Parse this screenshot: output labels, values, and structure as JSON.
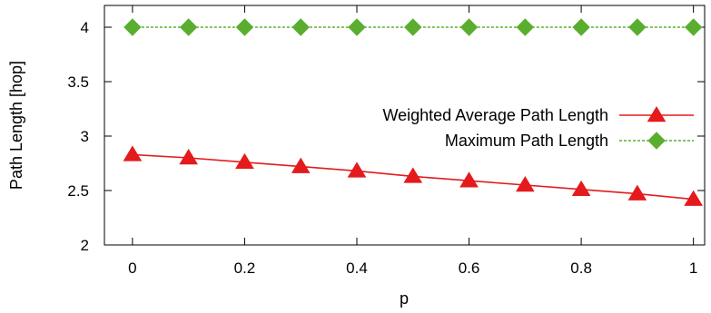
{
  "chart_data": {
    "type": "line",
    "title": "",
    "xlabel": "p",
    "ylabel": "Path Length [hop]",
    "xlim": [
      -0.05,
      1.02
    ],
    "ylim": [
      2,
      4.2
    ],
    "xticks": [
      0,
      0.2,
      0.4,
      0.6,
      0.8,
      1
    ],
    "xtick_labels": [
      "0",
      "0.2",
      "0.4",
      "0.6",
      "0.8",
      "1"
    ],
    "yticks": [
      2,
      2.5,
      3,
      3.5,
      4
    ],
    "ytick_labels": [
      "2",
      "2.5",
      "3",
      "3.5",
      "4"
    ],
    "grid": false,
    "legend_position": "right",
    "x": [
      0,
      0.1,
      0.2,
      0.3,
      0.4,
      0.5,
      0.6,
      0.7,
      0.8,
      0.9,
      1.0
    ],
    "series": [
      {
        "name": "Weighted Average Path Length",
        "values": [
          2.83,
          2.8,
          2.76,
          2.72,
          2.68,
          2.63,
          2.59,
          2.55,
          2.51,
          2.47,
          2.42
        ],
        "color": "#e41a1c",
        "marker": "triangle",
        "line": "solid"
      },
      {
        "name": "Maximum Path Length",
        "values": [
          4,
          4,
          4,
          4,
          4,
          4,
          4,
          4,
          4,
          4,
          4
        ],
        "color": "#5aae2f",
        "marker": "diamond",
        "line": "dashed"
      }
    ]
  }
}
